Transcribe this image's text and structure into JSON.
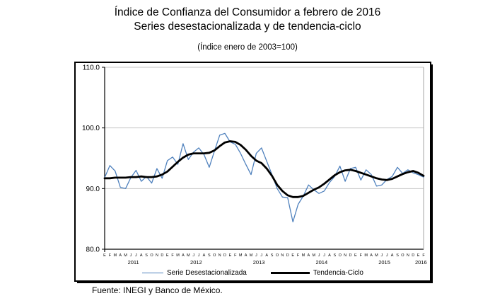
{
  "title": {
    "line1": "Índice de Confianza del Consumidor a febrero de 2016",
    "line2": "Series desestacionalizada y de tendencia-ciclo"
  },
  "subtitle": "(Índice enero de 2003=100)",
  "source": "Fuente: INEGI y Banco de México.",
  "colors": {
    "seasonally_adjusted": "#4F81BD",
    "trend_cycle": "#000000",
    "gridline": "#C6C6C6",
    "axis": "#000000",
    "frame": "#A6A6A6"
  },
  "chart_data": {
    "type": "line",
    "title": "Índice de Confianza del Consumidor a febrero de 2016",
    "subtitle": "(Índice enero de 2003=100)",
    "x_start": "2011-01",
    "x_end": "2016-02",
    "n_points": 62,
    "month_letters": [
      "E",
      "F",
      "M",
      "A",
      "M",
      "J",
      "J",
      "A",
      "S",
      "O",
      "N",
      "D"
    ],
    "years": [
      "2011",
      "2012",
      "2013",
      "2014",
      "2015",
      "2016"
    ],
    "ylim": [
      80.0,
      110.0
    ],
    "yticks": [
      110.0,
      100.0,
      90.0,
      80.0
    ],
    "ytick_labels": [
      "110.0",
      "100.0",
      "90.0",
      "80.0"
    ],
    "grid": true,
    "legend_position": "bottom",
    "series": [
      {
        "name": "Serie Desestacionalizada",
        "color": "#4F81BD",
        "stroke_width": 1.3,
        "values": [
          91.8,
          93.8,
          92.9,
          90.2,
          90.0,
          91.8,
          93.0,
          91.2,
          92.0,
          90.9,
          93.3,
          91.7,
          94.6,
          95.2,
          94.0,
          97.4,
          94.8,
          96.0,
          96.7,
          95.6,
          93.5,
          96.2,
          98.8,
          99.1,
          97.7,
          97.3,
          95.8,
          94.0,
          92.3,
          95.8,
          96.7,
          94.5,
          92.3,
          90.0,
          88.6,
          88.5,
          84.5,
          87.4,
          88.8,
          90.6,
          89.8,
          89.2,
          89.6,
          91.0,
          92.0,
          93.7,
          91.2,
          93.3,
          93.5,
          91.4,
          93.1,
          92.3,
          90.4,
          90.6,
          91.5,
          92.0,
          93.5,
          92.5,
          93.1,
          92.6,
          92.3,
          91.9
        ]
      },
      {
        "name": "Tendencia-Ciclo",
        "color": "#000000",
        "stroke_width": 2.8,
        "values": [
          91.7,
          91.7,
          91.8,
          91.8,
          91.8,
          91.9,
          91.9,
          92.0,
          91.9,
          91.9,
          92.0,
          92.3,
          92.8,
          93.6,
          94.4,
          95.1,
          95.6,
          95.8,
          95.8,
          95.8,
          95.9,
          96.3,
          97.0,
          97.6,
          97.8,
          97.7,
          97.2,
          96.4,
          95.4,
          94.6,
          94.2,
          93.3,
          92.1,
          90.6,
          89.6,
          88.9,
          88.6,
          88.6,
          88.8,
          89.3,
          89.8,
          90.2,
          90.8,
          91.5,
          92.2,
          92.7,
          93.0,
          93.1,
          92.9,
          92.6,
          92.3,
          92.0,
          91.7,
          91.5,
          91.4,
          91.6,
          92.0,
          92.4,
          92.7,
          92.9,
          92.6,
          92.1
        ]
      }
    ]
  },
  "legend": {
    "series1": "Serie Desestacionalizada",
    "series2": "Tendencia-Ciclo"
  }
}
